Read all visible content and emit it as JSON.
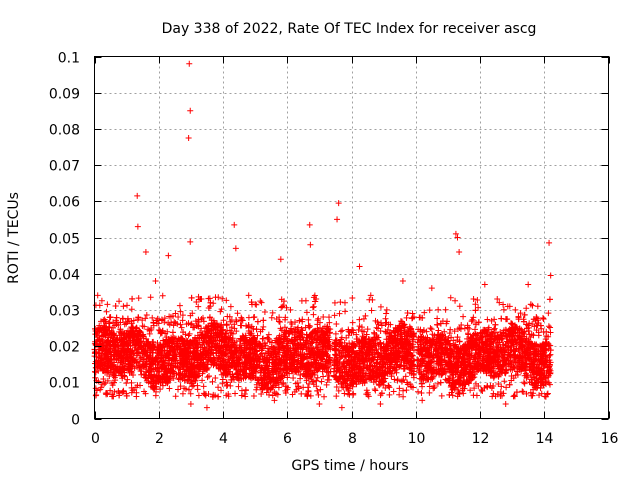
{
  "chart_data": {
    "type": "scatter",
    "title": "Day 338 of 2022, Rate Of TEC Index for receiver ascg",
    "xlabel": "GPS time / hours",
    "ylabel": "ROTI / TECUs",
    "xlim": [
      0,
      16
    ],
    "ylim": [
      0,
      0.1
    ],
    "xticks": [
      0,
      2,
      4,
      6,
      8,
      10,
      12,
      14,
      16
    ],
    "xtick_labels": [
      "0",
      "2",
      "4",
      "6",
      "8",
      "10",
      "12",
      "14",
      "16"
    ],
    "yticks": [
      0,
      0.01,
      0.02,
      0.03,
      0.04,
      0.05,
      0.06,
      0.07,
      0.08,
      0.09,
      0.1
    ],
    "ytick_labels": [
      "0",
      "0.01",
      "0.02",
      "0.03",
      "0.04",
      "0.05",
      "0.06",
      "0.07",
      "0.08",
      "0.09",
      "0.1"
    ],
    "grid": true,
    "marker": "+",
    "color": "#ff0000",
    "x_data_range": [
      0.0,
      14.2
    ],
    "series": [
      {
        "name": "ROTI",
        "points": [
          [
            2.95,
            0.098
          ],
          [
            2.98,
            0.085
          ],
          [
            2.93,
            0.0775
          ],
          [
            1.33,
            0.0615
          ],
          [
            7.6,
            0.0595
          ],
          [
            7.55,
            0.055
          ],
          [
            6.7,
            0.0535
          ],
          [
            4.35,
            0.0535
          ],
          [
            1.35,
            0.053
          ],
          [
            11.25,
            0.051
          ],
          [
            11.3,
            0.05
          ],
          [
            2.98,
            0.0488
          ],
          [
            14.15,
            0.0485
          ],
          [
            6.72,
            0.048
          ],
          [
            4.4,
            0.047
          ],
          [
            11.35,
            0.046
          ],
          [
            2.3,
            0.045
          ],
          [
            1.6,
            0.046
          ],
          [
            5.8,
            0.044
          ],
          [
            8.25,
            0.042
          ],
          [
            14.2,
            0.0395
          ],
          [
            12.15,
            0.037
          ],
          [
            13.5,
            0.037
          ],
          [
            0.1,
            0.034
          ],
          [
            9.6,
            0.038
          ],
          [
            10.5,
            0.036
          ],
          [
            0.5,
            0.028
          ],
          [
            0.9,
            0.031
          ],
          [
            1.9,
            0.038
          ],
          [
            3.3,
            0.033
          ],
          [
            3.6,
            0.031
          ],
          [
            4.8,
            0.034
          ],
          [
            5.2,
            0.032
          ],
          [
            6.1,
            0.03
          ],
          [
            6.9,
            0.033
          ],
          [
            7.3,
            0.028
          ],
          [
            8.6,
            0.034
          ],
          [
            9.1,
            0.03
          ],
          [
            9.9,
            0.029
          ],
          [
            11.8,
            0.033
          ],
          [
            12.6,
            0.032
          ],
          [
            13.1,
            0.03
          ],
          [
            13.8,
            0.031
          ],
          [
            2.6,
            0.008
          ],
          [
            3.0,
            0.004
          ],
          [
            3.5,
            0.003
          ],
          [
            5.6,
            0.005
          ],
          [
            7.0,
            0.004
          ],
          [
            7.7,
            0.003
          ],
          [
            8.9,
            0.004
          ],
          [
            10.2,
            0.005
          ],
          [
            12.8,
            0.004
          ],
          [
            0.05,
            0.0065
          ],
          [
            0.02,
            0.018
          ],
          [
            0.15,
            0.024
          ],
          [
            1.2,
            0.012
          ],
          [
            2.1,
            0.016
          ],
          [
            4.1,
            0.015
          ],
          [
            5.0,
            0.013
          ],
          [
            6.4,
            0.011
          ],
          [
            8.1,
            0.012
          ],
          [
            9.4,
            0.014
          ],
          [
            10.8,
            0.013
          ],
          [
            11.5,
            0.015
          ],
          [
            12.3,
            0.017
          ],
          [
            13.3,
            0.014
          ],
          [
            14.0,
            0.012
          ]
        ]
      }
    ]
  }
}
